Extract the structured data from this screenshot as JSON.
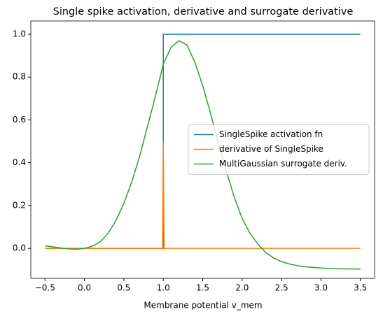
{
  "chart_data": {
    "type": "line",
    "title": "Single spike activation, derivative and surrogate derivative",
    "x_label": "Membrane potential v_mem",
    "xlim": [
      -0.68,
      3.68
    ],
    "ylim": [
      -0.14,
      1.062
    ],
    "xticks": [
      {
        "value": -0.5,
        "label": "−0.5"
      },
      {
        "value": 0,
        "label": "0.0"
      },
      0.5,
      {
        "value": 1,
        "label": "1.0"
      },
      1.5,
      {
        "value": 2,
        "label": "2.0"
      },
      2.5,
      {
        "value": 3,
        "label": "3.0"
      },
      3.5
    ],
    "yticks": [
      {
        "value": 0,
        "label": "0.0"
      },
      0.2,
      0.4,
      0.6,
      0.8,
      {
        "value": 1,
        "label": "1.0"
      }
    ],
    "legend": "center right",
    "series": [
      {
        "name": "SingleSpike activation fn",
        "color": "#1f77b4",
        "x": [
          -0.5,
          1.0,
          1.0,
          3.5
        ],
        "values": [
          0,
          0,
          1,
          1
        ]
      },
      {
        "name": "derivative of SingleSpike",
        "color": "#ff7f0e",
        "x": [
          -0.5,
          0.99,
          1.0,
          1.01,
          3.5
        ],
        "values": [
          0,
          0,
          0.5,
          0,
          0
        ]
      },
      {
        "name": "MultiGaussian surrogate deriv.",
        "color": "#2ca02c",
        "x": [
          -0.5,
          -0.4,
          -0.3,
          -0.2,
          -0.1,
          0,
          0.1,
          0.2,
          0.3,
          0.4,
          0.5,
          0.6,
          0.7,
          0.8,
          0.9,
          1.0,
          1.1,
          1.2,
          1.3,
          1.4,
          1.5,
          1.6,
          1.7,
          1.8,
          1.9,
          2.0,
          2.1,
          2.2,
          2.3,
          2.4,
          2.5,
          2.6,
          2.7,
          2.8,
          2.9,
          3.0,
          3.1,
          3.2,
          3.3,
          3.4,
          3.5
        ],
        "values": [
          0.012,
          0.007,
          0.002,
          -0.003,
          -0.004,
          0,
          0.01,
          0.03,
          0.07,
          0.13,
          0.21,
          0.31,
          0.43,
          0.57,
          0.71,
          0.86,
          0.94,
          0.97,
          0.95,
          0.87,
          0.76,
          0.63,
          0.49,
          0.36,
          0.24,
          0.14,
          0.07,
          0.02,
          -0.02,
          -0.045,
          -0.062,
          -0.073,
          -0.081,
          -0.086,
          -0.089,
          -0.092,
          -0.094,
          -0.095,
          -0.096,
          -0.096,
          -0.097
        ]
      }
    ]
  }
}
